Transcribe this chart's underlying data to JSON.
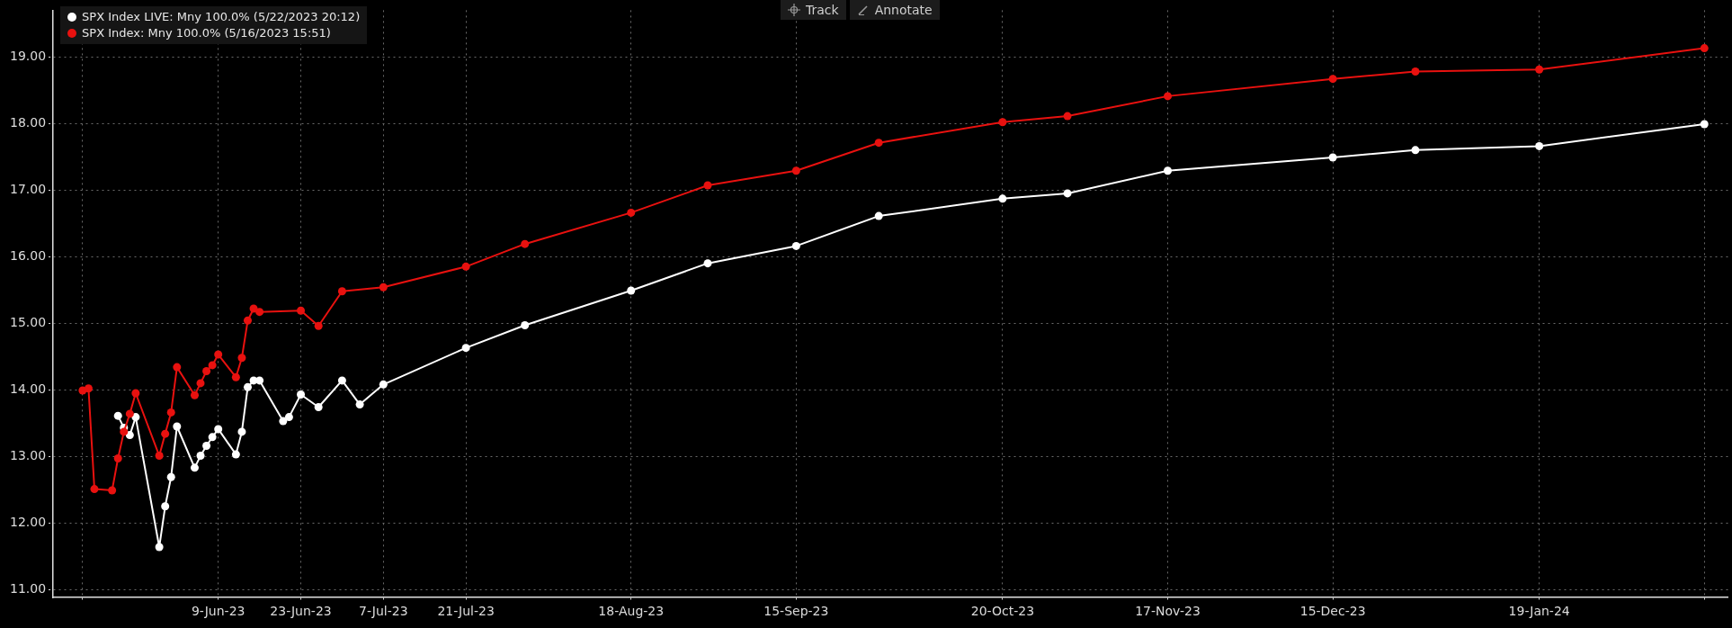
{
  "chart_data": {
    "type": "line",
    "xlim": [
      "2023-05-12",
      "2024-02-20"
    ],
    "xticks": [
      {
        "value": "2023-05-17",
        "label": null
      },
      {
        "value": "2023-06-09",
        "label": "9-Jun-23"
      },
      {
        "value": "2023-06-23",
        "label": "23-Jun-23"
      },
      {
        "value": "2023-07-07",
        "label": "7-Jul-23"
      },
      {
        "value": "2023-07-21",
        "label": "21-Jul-23"
      },
      {
        "value": "2023-08-18",
        "label": "18-Aug-23"
      },
      {
        "value": "2023-09-15",
        "label": "15-Sep-23"
      },
      {
        "value": "2023-10-20",
        "label": "20-Oct-23"
      },
      {
        "value": "2023-11-17",
        "label": "17-Nov-23"
      },
      {
        "value": "2023-12-15",
        "label": "15-Dec-23"
      },
      {
        "value": "2024-01-19",
        "label": "19-Jan-24"
      },
      {
        "value": "2024-02-16",
        "label": null
      }
    ],
    "ylim": [
      10.88,
      19.7
    ],
    "yticks": [
      {
        "value": 11,
        "label": "11.00"
      },
      {
        "value": 12,
        "label": "12.00"
      },
      {
        "value": 13,
        "label": "13.00"
      },
      {
        "value": 14,
        "label": "14.00"
      },
      {
        "value": 15,
        "label": "15.00"
      },
      {
        "value": 16,
        "label": "16.00"
      },
      {
        "value": 17,
        "label": "17.00"
      },
      {
        "value": 18,
        "label": "18.00"
      },
      {
        "value": 19,
        "label": "19.00"
      }
    ],
    "grid": true,
    "legend": "top left",
    "marker": "circle",
    "line_style": "solid",
    "annotations": [
      "Track",
      "Annotate"
    ],
    "series": [
      {
        "name": "SPX Index LIVE: Mny 100.0% (5/22/2023 20:12)",
        "color": "#ffffff",
        "x": [
          "2023-05-23",
          "2023-05-24",
          "2023-05-25",
          "2023-05-26",
          "2023-05-30",
          "2023-05-31",
          "2023-06-01",
          "2023-06-02",
          "2023-06-05",
          "2023-06-06",
          "2023-06-07",
          "2023-06-08",
          "2023-06-09",
          "2023-06-12",
          "2023-06-13",
          "2023-06-14",
          "2023-06-15",
          "2023-06-16",
          "2023-06-20",
          "2023-06-21",
          "2023-06-23",
          "2023-06-26",
          "2023-06-30",
          "2023-07-03",
          "2023-07-07",
          "2023-07-21",
          "2023-07-31",
          "2023-08-18",
          "2023-08-31",
          "2023-09-15",
          "2023-09-29",
          "2023-10-20",
          "2023-10-31",
          "2023-11-17",
          "2023-12-15",
          "2023-12-29",
          "2024-01-19",
          "2024-02-16"
        ],
        "values": [
          13.61,
          13.43,
          13.32,
          13.59,
          11.64,
          12.25,
          12.69,
          13.45,
          12.83,
          13.01,
          13.16,
          13.29,
          13.41,
          13.03,
          13.37,
          14.04,
          14.14,
          14.14,
          13.53,
          13.59,
          13.93,
          13.74,
          14.14,
          13.78,
          14.08,
          14.63,
          14.97,
          15.49,
          15.9,
          16.16,
          16.61,
          16.87,
          16.95,
          17.29,
          17.49,
          17.6,
          17.66,
          17.99
        ]
      },
      {
        "name": "SPX Index: Mny 100.0% (5/16/2023 15:51)",
        "color": "#e8110f",
        "x": [
          "2023-05-17",
          "2023-05-18",
          "2023-05-19",
          "2023-05-22",
          "2023-05-23",
          "2023-05-24",
          "2023-05-25",
          "2023-05-26",
          "2023-05-30",
          "2023-05-31",
          "2023-06-01",
          "2023-06-02",
          "2023-06-05",
          "2023-06-06",
          "2023-06-07",
          "2023-06-08",
          "2023-06-09",
          "2023-06-12",
          "2023-06-13",
          "2023-06-14",
          "2023-06-15",
          "2023-06-16",
          "2023-06-23",
          "2023-06-26",
          "2023-06-30",
          "2023-07-07",
          "2023-07-21",
          "2023-07-31",
          "2023-08-18",
          "2023-08-31",
          "2023-09-15",
          "2023-09-29",
          "2023-10-20",
          "2023-10-31",
          "2023-11-17",
          "2023-12-15",
          "2023-12-29",
          "2024-01-19",
          "2024-02-16"
        ],
        "values": [
          13.99,
          14.02,
          12.51,
          12.49,
          12.97,
          13.37,
          13.64,
          13.95,
          13.01,
          13.34,
          13.66,
          14.34,
          13.92,
          14.1,
          14.28,
          14.37,
          14.53,
          14.19,
          14.48,
          15.04,
          15.22,
          15.17,
          15.19,
          14.96,
          15.48,
          15.54,
          15.85,
          16.19,
          16.66,
          17.07,
          17.29,
          17.71,
          18.02,
          18.11,
          18.41,
          18.67,
          18.78,
          18.81,
          19.13
        ]
      }
    ]
  }
}
